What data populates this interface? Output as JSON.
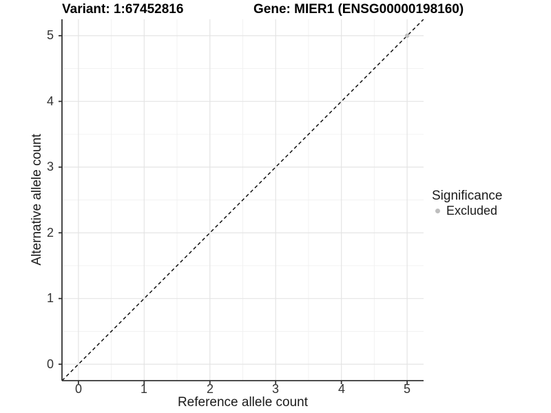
{
  "title_left": "Variant: 1:67452816",
  "title_right": "Gene: MIER1 (ENSG00000198160)",
  "axes": {
    "x": {
      "label": "Reference allele count",
      "ticks": [
        "0",
        "1",
        "2",
        "3",
        "4",
        "5"
      ]
    },
    "y": {
      "label": "Alternative allele count",
      "ticks": [
        "0",
        "1",
        "2",
        "3",
        "4",
        "5"
      ]
    }
  },
  "legend": {
    "title": "Significance",
    "items": [
      {
        "label": "Excluded",
        "color": "#bebebe"
      }
    ]
  },
  "colors": {
    "background": "#ffffff",
    "grid_major": "#e4e4e4",
    "grid_minor": "#f1f1f1",
    "axis_line": "#333333",
    "tick_text": "#333333",
    "title_text": "#000000",
    "reference_line": "#000000",
    "excluded_point": "#bebebe"
  },
  "chart_data": {
    "type": "scatter",
    "title": "Variant: 1:67452816 — Gene: MIER1 (ENSG00000198160)",
    "xlabel": "Reference allele count",
    "ylabel": "Alternative allele count",
    "xlim": [
      -0.25,
      5.25
    ],
    "ylim": [
      -0.25,
      5.25
    ],
    "x_major_ticks": [
      0,
      1,
      2,
      3,
      4,
      5
    ],
    "y_major_ticks": [
      0,
      1,
      2,
      3,
      4,
      5
    ],
    "x_minor_ticks": [
      0.5,
      1.5,
      2.5,
      3.5,
      4.5
    ],
    "y_minor_ticks": [
      0.5,
      1.5,
      2.5,
      3.5,
      4.5
    ],
    "grid": "major and minor gridlines, light grey on white panel",
    "legend_position": "right",
    "legend_title": "Significance",
    "series": [
      {
        "name": "Excluded",
        "color": "#bebebe",
        "marker": "circle",
        "points": [
          {
            "x": 5,
            "y": 5
          }
        ]
      }
    ],
    "reference_line": {
      "kind": "identity y = x",
      "style": "dashed",
      "color": "#000000",
      "from": [
        -0.25,
        -0.25
      ],
      "to": [
        5.25,
        5.25
      ]
    }
  }
}
